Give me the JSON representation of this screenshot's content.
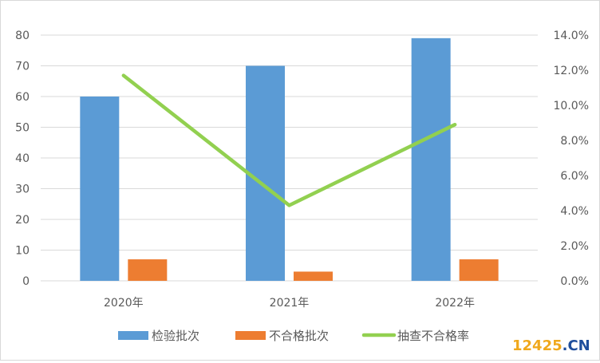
{
  "chart_data": {
    "type": "bar+line",
    "categories": [
      "2020年",
      "2021年",
      "2022年"
    ],
    "series": [
      {
        "name": "检验批次",
        "type": "bar",
        "axis": "left",
        "values": [
          60,
          70,
          79
        ],
        "color": "#5b9bd5"
      },
      {
        "name": "不合格批次",
        "type": "bar",
        "axis": "left",
        "values": [
          7,
          3,
          7
        ],
        "color": "#ed7d31"
      },
      {
        "name": "抽查不合格率",
        "type": "line",
        "axis": "right",
        "values": [
          11.7,
          4.3,
          8.9
        ],
        "color": "#92d050"
      }
    ],
    "y_left": {
      "min": 0,
      "max": 80,
      "step": 10,
      "ticks": [
        "0",
        "10",
        "20",
        "30",
        "40",
        "50",
        "60",
        "70",
        "80"
      ]
    },
    "y_right": {
      "min": 0,
      "max": 14,
      "step": 2,
      "ticks": [
        "0.0%",
        "2.0%",
        "4.0%",
        "6.0%",
        "8.0%",
        "10.0%",
        "12.0%",
        "14.0%"
      ]
    },
    "grid": true,
    "legend_position": "bottom"
  },
  "watermark": {
    "text": "12425",
    "suffix": ".CN"
  }
}
